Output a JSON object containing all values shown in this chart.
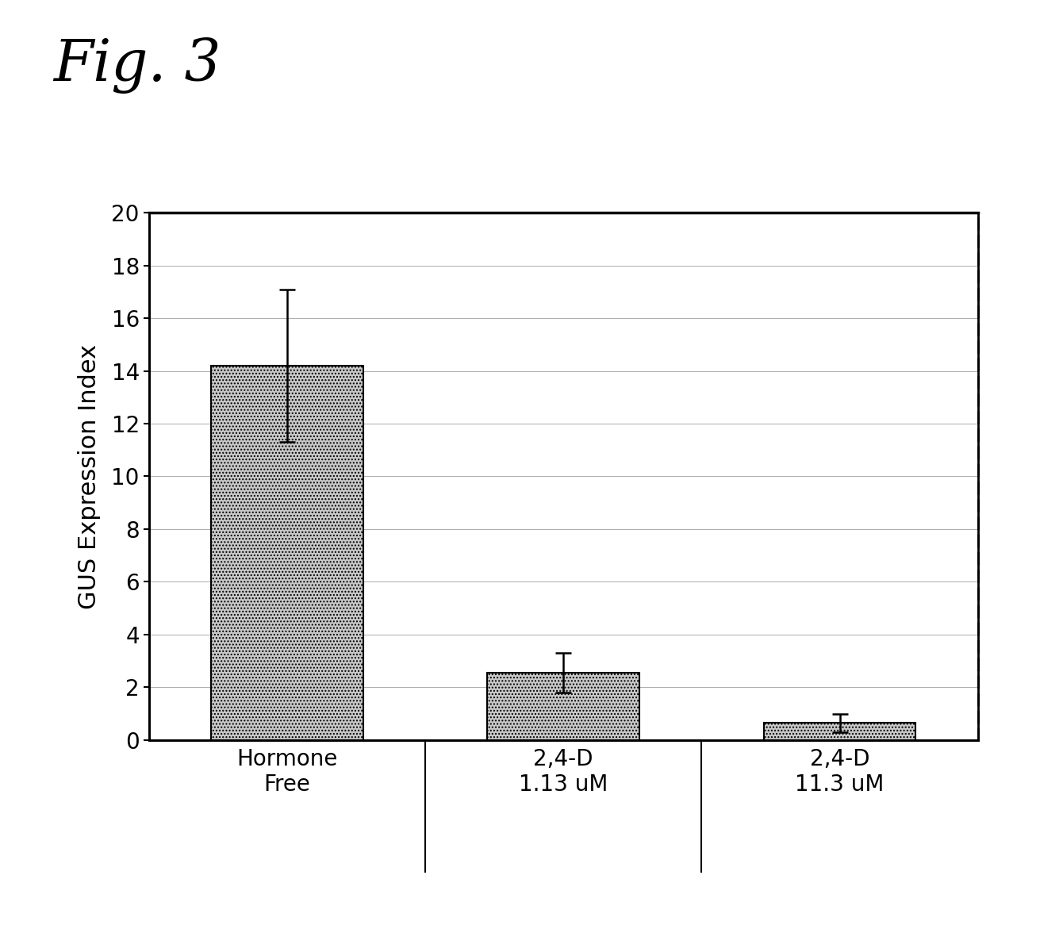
{
  "categories": [
    "Hormone\nFree",
    "2,4-D\n1.13 uM",
    "2,4-D\n11.3 uM"
  ],
  "values": [
    14.2,
    2.55,
    0.65
  ],
  "errors": [
    2.9,
    0.75,
    0.35
  ],
  "ylabel": "GUS Expression Index",
  "ylim": [
    0,
    20
  ],
  "yticks": [
    0,
    2,
    4,
    6,
    8,
    10,
    12,
    14,
    16,
    18,
    20
  ],
  "figure_title": "Fig. 3",
  "bar_color": "#c8c8c8",
  "bar_hatch": "....",
  "bar_edgecolor": "#000000",
  "background_color": "#ffffff",
  "grid_color": "#888888",
  "title_fontsize": 52,
  "label_fontsize": 22,
  "tick_fontsize": 20,
  "xtick_fontsize": 20,
  "error_capsize": 7,
  "error_linewidth": 1.8,
  "bar_width": 0.55
}
